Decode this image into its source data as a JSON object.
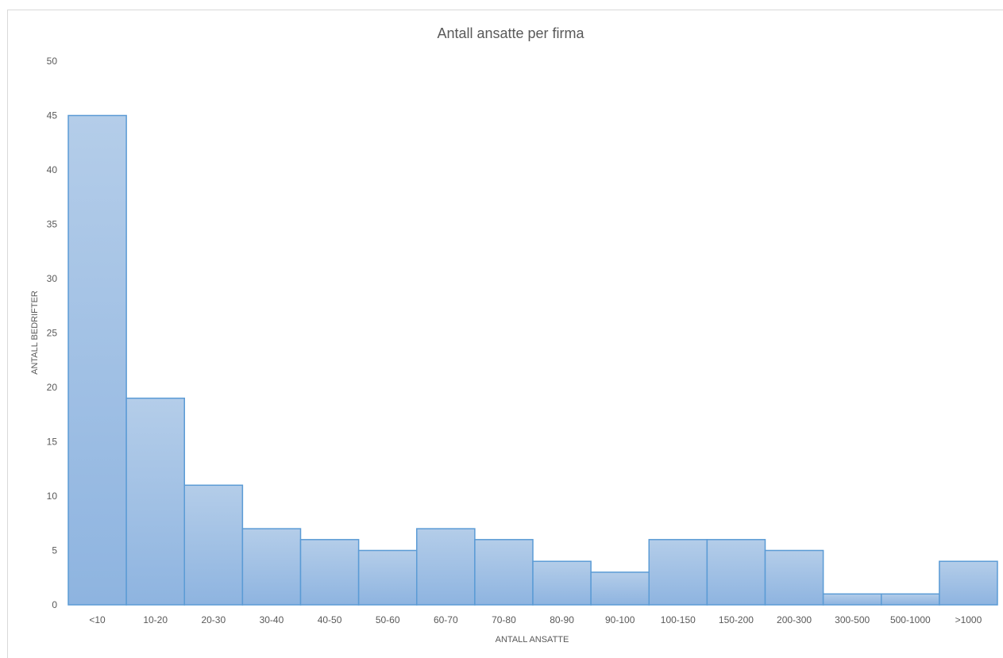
{
  "chart_data": {
    "type": "bar",
    "title": "Antall ansatte per firma",
    "xlabel": "ANTALL ANSATTE",
    "ylabel": "ANTALL BEDRIFTER",
    "categories": [
      "<10",
      "10-20",
      "20-30",
      "30-40",
      "40-50",
      "50-60",
      "60-70",
      "70-80",
      "80-90",
      "90-100",
      "100-150",
      "150-200",
      "200-300",
      "300-500",
      "500-1000",
      ">1000"
    ],
    "values": [
      45,
      19,
      11,
      7,
      6,
      5,
      7,
      6,
      4,
      3,
      6,
      6,
      5,
      1,
      1,
      4
    ],
    "ylim": [
      0,
      50
    ],
    "yticks": [
      "0",
      "5",
      "10",
      "15",
      "20",
      "25",
      "30",
      "35",
      "40",
      "45",
      "50"
    ],
    "grid": false,
    "legend": "none",
    "colors": {
      "bar_top": "#b4cde9",
      "bar_bottom": "#8eb4e0",
      "bar_border": "#5b9bd5",
      "text": "#595959"
    }
  }
}
